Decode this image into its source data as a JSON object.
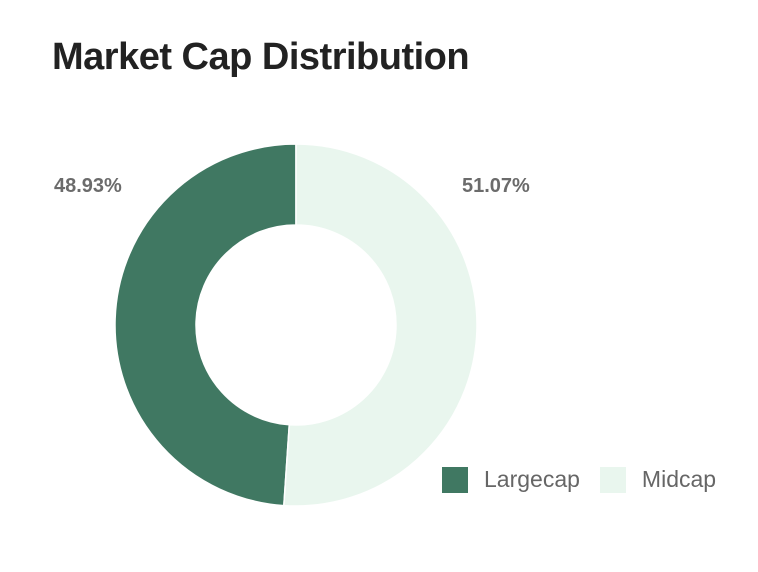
{
  "title": "Market Cap Distribution",
  "chart_data": {
    "type": "pie",
    "variant": "donut",
    "title": "Market Cap Distribution",
    "labels": [
      "Largecap",
      "Midcap"
    ],
    "values": [
      48.93,
      51.07
    ],
    "value_labels": [
      "48.93%",
      "51.07%"
    ],
    "colors": [
      "#407862",
      "#e9f6ee"
    ],
    "legend_position": "bottom-right"
  },
  "legend": {
    "items": [
      {
        "label": "Largecap",
        "color": "#407862"
      },
      {
        "label": "Midcap",
        "color": "#e9f6ee"
      }
    ]
  }
}
